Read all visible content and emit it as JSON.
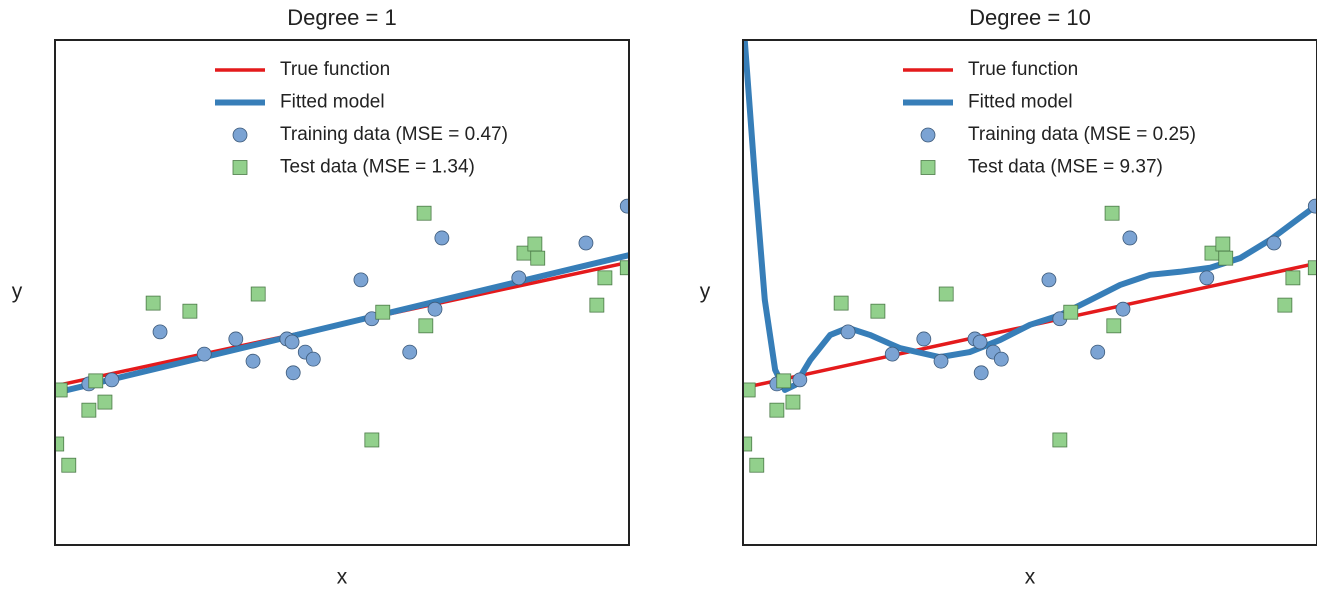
{
  "chart_data": [
    {
      "type": "scatter",
      "title": "Degree = 1",
      "xlabel": "x",
      "ylabel": "y",
      "xlim": [
        0,
        1
      ],
      "ylim": [
        0,
        1
      ],
      "legend": "upper center",
      "series": [
        {
          "name": "True function",
          "color": "#e41a1c",
          "marker": "line",
          "x": [
            0,
            1
          ],
          "values": [
            0.315,
            0.56
          ]
        },
        {
          "name": "Fitted model",
          "color": "#377eb8",
          "marker": "line",
          "x": [
            0,
            1
          ],
          "values": [
            0.301,
            0.574
          ]
        },
        {
          "name": "Training data (MSE = 0.47)",
          "color": "#7ba3d3",
          "marker": "circle",
          "x": [
            0.059,
            0.099,
            0.183,
            0.26,
            0.315,
            0.345,
            0.404,
            0.413,
            0.415,
            0.436,
            0.45,
            0.533,
            0.552,
            0.618,
            0.662,
            0.674,
            0.808,
            0.925,
            0.997
          ],
          "values": [
            0.319,
            0.327,
            0.422,
            0.378,
            0.408,
            0.364,
            0.408,
            0.402,
            0.341,
            0.382,
            0.368,
            0.525,
            0.448,
            0.382,
            0.467,
            0.608,
            0.529,
            0.598,
            0.671
          ]
        },
        {
          "name": "Test data (MSE = 1.34)",
          "color": "#92d08c",
          "marker": "square",
          "x": [
            0.003,
            0.009,
            0.024,
            0.059,
            0.071,
            0.087,
            0.171,
            0.235,
            0.354,
            0.552,
            0.571,
            0.643,
            0.646,
            0.817,
            0.836,
            0.841,
            0.944,
            0.958,
            0.997
          ],
          "values": [
            0.2,
            0.307,
            0.158,
            0.267,
            0.325,
            0.283,
            0.479,
            0.463,
            0.497,
            0.208,
            0.461,
            0.657,
            0.434,
            0.578,
            0.596,
            0.568,
            0.475,
            0.529,
            0.549
          ]
        }
      ]
    },
    {
      "type": "scatter",
      "title": "Degree = 10",
      "xlabel": "x",
      "ylabel": "y",
      "xlim": [
        0,
        1
      ],
      "ylim": [
        0,
        1
      ],
      "legend": "upper center",
      "series": [
        {
          "name": "True function",
          "color": "#e41a1c",
          "marker": "line",
          "x": [
            0,
            1
          ],
          "values": [
            0.311,
            0.558
          ]
        },
        {
          "name": "Fitted model",
          "color": "#377eb8",
          "marker": "line",
          "x": [
            0.003,
            0.021,
            0.038,
            0.056,
            0.073,
            0.091,
            0.117,
            0.152,
            0.183,
            0.221,
            0.273,
            0.343,
            0.395,
            0.448,
            0.5,
            0.552,
            0.605,
            0.657,
            0.709,
            0.761,
            0.814,
            0.866,
            0.918,
            0.97,
            1
          ],
          "values": [
            1,
            0.723,
            0.485,
            0.347,
            0.307,
            0.317,
            0.366,
            0.416,
            0.43,
            0.416,
            0.39,
            0.372,
            0.382,
            0.406,
            0.436,
            0.455,
            0.485,
            0.515,
            0.535,
            0.541,
            0.549,
            0.568,
            0.604,
            0.648,
            0.673
          ]
        },
        {
          "name": "Training data (MSE = 0.25)",
          "color": "#7ba3d3",
          "marker": "circle",
          "x": [
            0.059,
            0.099,
            0.183,
            0.26,
            0.315,
            0.345,
            0.404,
            0.413,
            0.415,
            0.436,
            0.45,
            0.533,
            0.552,
            0.618,
            0.662,
            0.674,
            0.808,
            0.925,
            0.997
          ],
          "values": [
            0.319,
            0.327,
            0.422,
            0.378,
            0.408,
            0.364,
            0.408,
            0.402,
            0.341,
            0.382,
            0.368,
            0.525,
            0.448,
            0.382,
            0.467,
            0.608,
            0.529,
            0.598,
            0.671
          ]
        },
        {
          "name": "Test data (MSE = 9.37)",
          "color": "#92d08c",
          "marker": "square",
          "x": [
            0.003,
            0.009,
            0.024,
            0.059,
            0.071,
            0.087,
            0.171,
            0.235,
            0.354,
            0.552,
            0.571,
            0.643,
            0.646,
            0.817,
            0.836,
            0.841,
            0.944,
            0.958,
            0.997
          ],
          "values": [
            0.2,
            0.307,
            0.158,
            0.267,
            0.325,
            0.283,
            0.479,
            0.463,
            0.497,
            0.208,
            0.461,
            0.657,
            0.434,
            0.578,
            0.596,
            0.568,
            0.475,
            0.529,
            0.549
          ]
        }
      ]
    }
  ]
}
